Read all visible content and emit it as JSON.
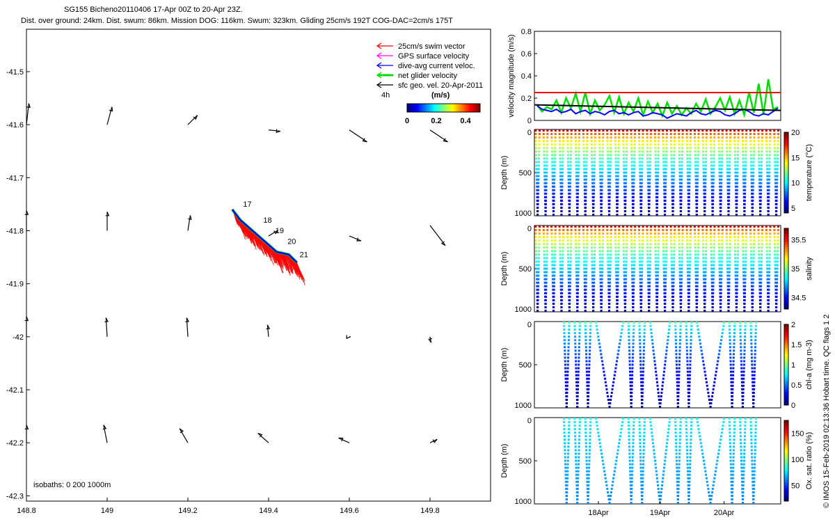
{
  "header": {
    "line1": "SG155 Bicheno20110406 17-Apr 00Z to 20-Apr 23Z.",
    "line2": "Dist. over ground: 24km. Dist. swum: 86km. Mission DOG: 116km. Swum: 323km. Gliding 25cm/s 192T COG-DAC=2cm/s 175T"
  },
  "copyright": "© IMOS 15-Feb-2019 02:13:36 Hobart time. QC flags 1  2",
  "colors": {
    "swim": "#ff0000",
    "gps": "#ff00ff",
    "dac": "#0000ff",
    "net": "#00dd00",
    "sfc": "#000000",
    "maxline": "#ff0000"
  },
  "chart_data": [
    {
      "type": "scatter",
      "name": "map",
      "xlim": [
        148.8,
        149.95
      ],
      "ylim": [
        -42.31,
        -41.42
      ],
      "xticks": [
        148.8,
        149,
        149.2,
        149.4,
        149.6,
        149.8
      ],
      "xtick_labels": [
        "148.8",
        "149",
        "149.2",
        "149.4",
        "149.6",
        "149.8"
      ],
      "yticks": [
        -41.5,
        -41.6,
        -41.7,
        -41.8,
        -41.9,
        -42,
        -42.1,
        -42.2,
        -42.3
      ],
      "ytick_labels": [
        "-41.5",
        "-41.6",
        "-41.7",
        "-41.8",
        "-41.9",
        "-42",
        "-42.1",
        "-42.2",
        "-42.3"
      ],
      "legend": [
        {
          "label": "25cm/s swim vector",
          "color": "#ff0000"
        },
        {
          "label": "GPS surface velocity",
          "color": "#ff00ff"
        },
        {
          "label": "dive-avg current veloc.",
          "color": "#0000ff"
        },
        {
          "label": "net glider velocity",
          "color": "#00dd00"
        },
        {
          "label": "sfc geo. vel. 20-Apr-2011",
          "color": "#000000"
        }
      ],
      "legend_position": "top-right",
      "colorbar": {
        "label": "(m/s)",
        "ticks": [
          "0",
          "0.2",
          "0.4"
        ],
        "range": [
          0,
          0.5
        ]
      },
      "time_step_label": "4h",
      "isobaths_label": "isobaths: 0   200  1000m",
      "track": {
        "lon": [
          149.31,
          149.33,
          149.36,
          149.39,
          149.42,
          149.45,
          149.47
        ],
        "lat": [
          -41.76,
          -41.78,
          -41.8,
          -41.82,
          -41.84,
          -41.845,
          -41.86
        ]
      },
      "day_labels": [
        {
          "text": "17",
          "lon": 149.33,
          "lat": -41.76
        },
        {
          "text": "18",
          "lon": 149.38,
          "lat": -41.79
        },
        {
          "text": "19",
          "lon": 149.41,
          "lat": -41.81
        },
        {
          "text": "20",
          "lon": 149.44,
          "lat": -41.83
        },
        {
          "text": "21",
          "lon": 149.47,
          "lat": -41.855
        }
      ],
      "surface_vectors": [
        {
          "lon": 148.8,
          "lat": -41.6,
          "u": 0.02,
          "v": 0.18
        },
        {
          "lon": 149.0,
          "lat": -41.6,
          "u": 0.04,
          "v": 0.15
        },
        {
          "lon": 149.2,
          "lat": -41.6,
          "u": 0.08,
          "v": 0.08
        },
        {
          "lon": 149.4,
          "lat": -41.61,
          "u": 0.1,
          "v": -0.01
        },
        {
          "lon": 149.6,
          "lat": -41.61,
          "u": 0.15,
          "v": -0.1
        },
        {
          "lon": 149.8,
          "lat": -41.61,
          "u": 0.15,
          "v": -0.1
        },
        {
          "lon": 148.8,
          "lat": -41.8,
          "u": 0.0,
          "v": 0.17
        },
        {
          "lon": 149.0,
          "lat": -41.8,
          "u": 0.0,
          "v": 0.16
        },
        {
          "lon": 149.2,
          "lat": -41.8,
          "u": 0.02,
          "v": 0.13
        },
        {
          "lon": 149.4,
          "lat": -41.81,
          "u": 0.08,
          "v": 0.05
        },
        {
          "lon": 149.6,
          "lat": -41.81,
          "u": 0.1,
          "v": -0.04
        },
        {
          "lon": 149.8,
          "lat": -41.79,
          "u": 0.13,
          "v": -0.17
        },
        {
          "lon": 148.8,
          "lat": -42.0,
          "u": 0.0,
          "v": 0.17
        },
        {
          "lon": 149.0,
          "lat": -42.0,
          "u": -0.01,
          "v": 0.16
        },
        {
          "lon": 149.2,
          "lat": -42.0,
          "u": -0.01,
          "v": 0.16
        },
        {
          "lon": 149.4,
          "lat": -42.0,
          "u": -0.01,
          "v": 0.1
        },
        {
          "lon": 149.6,
          "lat": -42.0,
          "u": 0.01,
          "v": 0.0
        },
        {
          "lon": 149.8,
          "lat": -42.0,
          "u": 0.01,
          "v": -0.05
        },
        {
          "lon": 148.8,
          "lat": -42.2,
          "u": 0.0,
          "v": 0.15
        },
        {
          "lon": 149.0,
          "lat": -42.2,
          "u": -0.03,
          "v": 0.15
        },
        {
          "lon": 149.2,
          "lat": -42.2,
          "u": -0.07,
          "v": 0.12
        },
        {
          "lon": 149.4,
          "lat": -42.2,
          "u": -0.09,
          "v": 0.08
        },
        {
          "lon": 149.6,
          "lat": -42.2,
          "u": -0.09,
          "v": 0.04
        },
        {
          "lon": 149.8,
          "lat": -42.2,
          "u": 0.06,
          "v": 0.03
        }
      ]
    },
    {
      "type": "line",
      "name": "velocity",
      "ylabel": "velocity magnitude (m/s)",
      "ylim": [
        0,
        0.8
      ],
      "yticks": [
        0,
        0.2,
        0.4,
        0.6,
        0.8
      ],
      "ytick_labels": [
        "0",
        "0.2",
        "0.4",
        "0.6",
        "0.8"
      ],
      "reference_line": 0.25,
      "trend": {
        "start": 0.14,
        "end": 0.09
      },
      "dac_series": [
        0.13,
        0.1,
        0.09,
        0.08,
        0.1,
        0.07,
        0.08,
        0.1,
        0.06,
        0.08,
        0.09,
        0.06,
        0.08,
        0.07,
        0.05,
        0.08,
        0.09,
        0.06,
        0.07,
        0.05,
        0.07,
        0.08,
        0.04,
        0.05,
        0.07,
        0.06,
        0.05,
        0.02,
        0.04,
        0.06,
        0.05,
        0.04,
        0.07,
        0.09,
        0.06,
        0.05,
        0.07,
        0.09,
        0.08,
        0.05,
        0.04,
        0.06,
        0.09,
        0.1,
        0.08,
        0.05,
        0.04,
        0.06,
        0.05,
        0.08,
        0.11
      ],
      "net_series": [
        0.14,
        0.08,
        0.12,
        0.1,
        0.18,
        0.07,
        0.2,
        0.11,
        0.24,
        0.08,
        0.25,
        0.06,
        0.18,
        0.09,
        0.14,
        0.22,
        0.07,
        0.21,
        0.06,
        0.16,
        0.08,
        0.2,
        0.05,
        0.17,
        0.07,
        0.15,
        0.04,
        0.16,
        0.06,
        0.13,
        0.05,
        0.11,
        0.06,
        0.15,
        0.08,
        0.19,
        0.06,
        0.12,
        0.2,
        0.09,
        0.21,
        0.06,
        0.18,
        0.05,
        0.25,
        0.07,
        0.33,
        0.05,
        0.37,
        0.1,
        0.12
      ]
    },
    {
      "type": "heatmap",
      "name": "temperature",
      "ylabel": "Depth (m)",
      "clabel": "temperature (°C)",
      "yticks": [
        "0",
        "500",
        "1000"
      ],
      "cticks": [
        "20",
        "15",
        "10",
        "5"
      ],
      "crange": [
        4,
        20
      ],
      "dives": 62,
      "surface_value": 19,
      "deep_value": 4.5
    },
    {
      "type": "heatmap",
      "name": "salinity",
      "ylabel": "Depth (m)",
      "clabel": "salinity",
      "yticks": [
        "0",
        "500",
        "1000"
      ],
      "cticks": [
        "35.5",
        "35",
        "34.5"
      ],
      "crange": [
        34.3,
        35.7
      ],
      "dives": 62,
      "surface_value": 35.6,
      "deep_value": 34.35
    },
    {
      "type": "heatmap",
      "name": "chlorophyll",
      "ylabel": "Depth (m)",
      "clabel": "chl-a (mg m-3)",
      "yticks": [
        "0",
        "500",
        "1000"
      ],
      "cticks": [
        "2",
        "1.5",
        "1",
        "0.5",
        "0"
      ],
      "crange": [
        0,
        2
      ],
      "surface_value": 0.9,
      "deep_value": 0.05,
      "dive_groups": [
        [
          0.12,
          0.25
        ],
        [
          0.36,
          0.47
        ],
        [
          0.55,
          0.66
        ],
        [
          0.77,
          0.9
        ]
      ]
    },
    {
      "type": "heatmap",
      "name": "oxygen",
      "ylabel": "Depth (m)",
      "clabel": "Ox. sat. ratio (%)",
      "yticks": [
        "0",
        "500",
        "1000"
      ],
      "cticks": [
        "150",
        "100",
        "50"
      ],
      "crange": [
        20,
        175
      ],
      "surface_value": 80,
      "deep_value": 60,
      "dive_groups": [
        [
          0.12,
          0.25
        ],
        [
          0.36,
          0.47
        ],
        [
          0.55,
          0.66
        ],
        [
          0.77,
          0.9
        ]
      ],
      "xtick_labels": [
        "18Apr",
        "19Apr",
        "20Apr"
      ]
    }
  ]
}
